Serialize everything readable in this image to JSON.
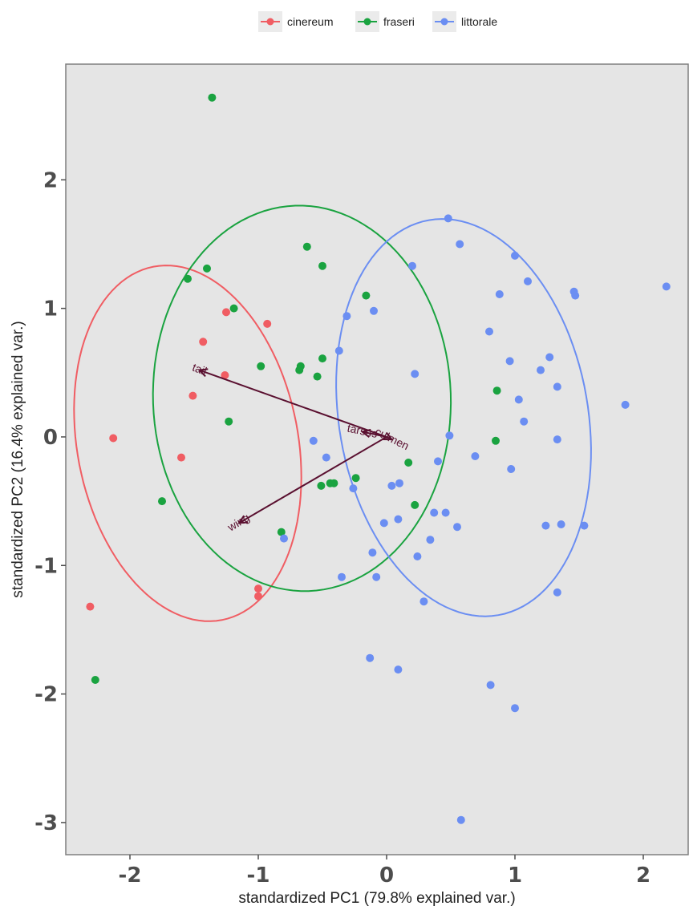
{
  "chart_data": {
    "type": "scatter",
    "title": "",
    "xlabel": "standardized PC1 (79.8% explained var.)",
    "ylabel": "standardized PC2 (16.4% explained var.)",
    "xlim": [
      -2.5,
      2.35
    ],
    "ylim": [
      -3.25,
      2.9
    ],
    "x_ticks": [
      -2,
      -1,
      0,
      1,
      2
    ],
    "y_ticks": [
      -3,
      -2,
      -1,
      0,
      1,
      2
    ],
    "grid": false,
    "legend_position": "top",
    "series": [
      {
        "name": "cinereum",
        "color": "#f05d63",
        "points": [
          [
            -1.25,
            0.97
          ],
          [
            -0.93,
            0.88
          ],
          [
            -1.43,
            0.74
          ],
          [
            -1.26,
            0.48
          ],
          [
            -1.51,
            0.32
          ],
          [
            -2.13,
            -0.01
          ],
          [
            -1.6,
            -0.16
          ],
          [
            -1.0,
            -1.18
          ],
          [
            -1.0,
            -1.24
          ],
          [
            -2.31,
            -1.32
          ]
        ]
      },
      {
        "name": "fraseri",
        "color": "#1aa340",
        "points": [
          [
            -1.36,
            2.64
          ],
          [
            -1.4,
            1.31
          ],
          [
            -1.55,
            1.23
          ],
          [
            -0.62,
            1.48
          ],
          [
            -0.5,
            1.33
          ],
          [
            -1.19,
            1.0
          ],
          [
            -0.16,
            1.1
          ],
          [
            -0.5,
            0.61
          ],
          [
            -0.98,
            0.55
          ],
          [
            -0.67,
            0.55
          ],
          [
            -0.68,
            0.52
          ],
          [
            -0.54,
            0.47
          ],
          [
            -1.23,
            0.12
          ],
          [
            0.86,
            0.36
          ],
          [
            0.85,
            -0.03
          ],
          [
            0.17,
            -0.2
          ],
          [
            -0.24,
            -0.32
          ],
          [
            -0.51,
            -0.38
          ],
          [
            -0.44,
            -0.36
          ],
          [
            -0.41,
            -0.36
          ],
          [
            0.22,
            -0.53
          ],
          [
            -1.75,
            -0.5
          ],
          [
            -0.82,
            -0.74
          ],
          [
            -2.27,
            -1.89
          ]
        ]
      },
      {
        "name": "littorale",
        "color": "#6b8ef2",
        "points": [
          [
            0.48,
            1.7
          ],
          [
            0.57,
            1.5
          ],
          [
            1.0,
            1.41
          ],
          [
            0.2,
            1.33
          ],
          [
            1.1,
            1.21
          ],
          [
            1.46,
            1.13
          ],
          [
            1.47,
            1.1
          ],
          [
            2.18,
            1.17
          ],
          [
            0.88,
            1.11
          ],
          [
            -0.1,
            0.98
          ],
          [
            -0.31,
            0.94
          ],
          [
            0.8,
            0.82
          ],
          [
            -0.37,
            0.67
          ],
          [
            1.27,
            0.62
          ],
          [
            0.96,
            0.59
          ],
          [
            1.2,
            0.52
          ],
          [
            0.22,
            0.49
          ],
          [
            1.33,
            0.39
          ],
          [
            1.03,
            0.29
          ],
          [
            1.86,
            0.25
          ],
          [
            1.07,
            0.12
          ],
          [
            0.49,
            0.01
          ],
          [
            -0.57,
            -0.03
          ],
          [
            1.33,
            -0.02
          ],
          [
            0.69,
            -0.15
          ],
          [
            -0.47,
            -0.16
          ],
          [
            0.4,
            -0.19
          ],
          [
            0.97,
            -0.25
          ],
          [
            0.1,
            -0.36
          ],
          [
            0.04,
            -0.38
          ],
          [
            -0.26,
            -0.4
          ],
          [
            0.37,
            -0.59
          ],
          [
            0.46,
            -0.59
          ],
          [
            0.09,
            -0.64
          ],
          [
            -0.02,
            -0.67
          ],
          [
            0.55,
            -0.7
          ],
          [
            1.24,
            -0.69
          ],
          [
            1.36,
            -0.68
          ],
          [
            1.54,
            -0.69
          ],
          [
            -0.8,
            -0.79
          ],
          [
            0.34,
            -0.8
          ],
          [
            -0.11,
            -0.9
          ],
          [
            0.24,
            -0.93
          ],
          [
            -0.35,
            -1.09
          ],
          [
            -0.08,
            -1.09
          ],
          [
            1.33,
            -1.21
          ],
          [
            0.29,
            -1.28
          ],
          [
            -0.13,
            -1.72
          ],
          [
            0.09,
            -1.81
          ],
          [
            0.81,
            -1.93
          ],
          [
            1.0,
            -2.11
          ],
          [
            0.58,
            -2.98
          ]
        ]
      }
    ],
    "ellipses": [
      {
        "series": "cinereum",
        "cx": -1.55,
        "cy": -0.05,
        "rx": 0.86,
        "ry": 1.4,
        "angle_deg": 11
      },
      {
        "series": "fraseri",
        "cx": -0.66,
        "cy": 0.3,
        "rx": 1.16,
        "ry": 1.5,
        "angle_deg": 2
      },
      {
        "series": "littorale",
        "cx": 0.6,
        "cy": 0.15,
        "rx": 0.97,
        "ry": 1.56,
        "angle_deg": 10
      }
    ],
    "loadings": [
      {
        "label": "tail",
        "x": -1.46,
        "y": 0.52
      },
      {
        "label": "tarsus",
        "x": -0.19,
        "y": 0.04
      },
      {
        "label": "culmen",
        "x": 0.04,
        "y": -0.02
      },
      {
        "label": "wing",
        "x": -1.15,
        "y": -0.67
      }
    ]
  }
}
